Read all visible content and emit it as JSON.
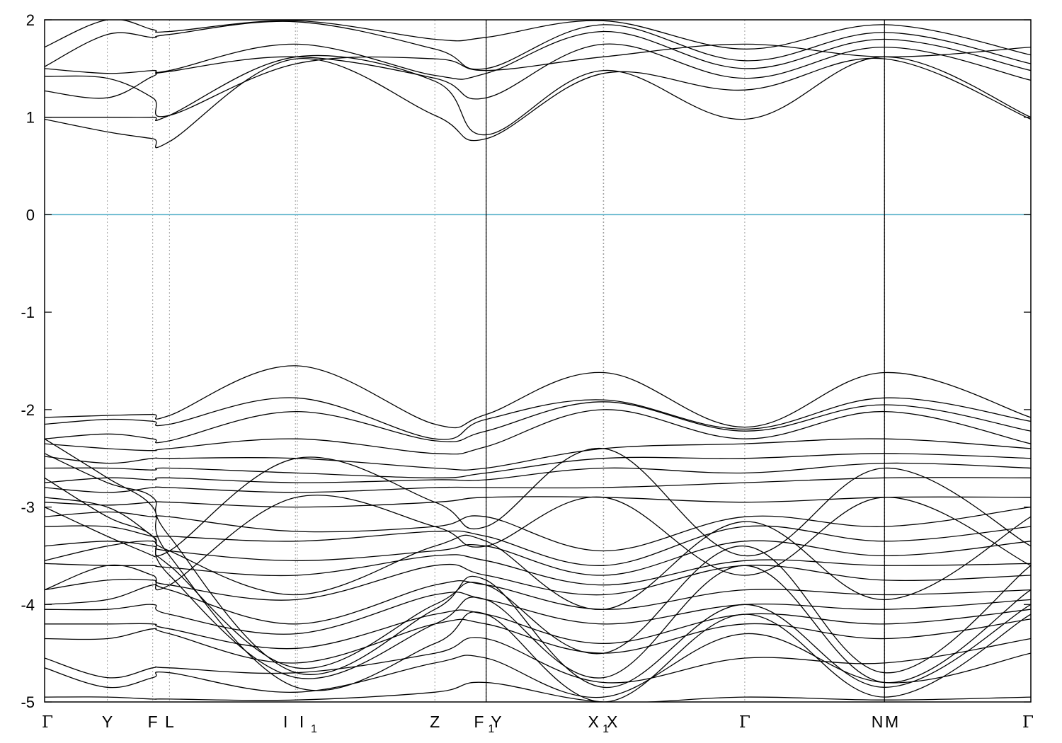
{
  "chart_data": {
    "type": "line",
    "title": "",
    "xlabel": "",
    "ylabel": "",
    "ylim": [
      -5,
      2
    ],
    "xlim": [
      0,
      1
    ],
    "grid": "vertical dotted lines at high-symmetry k-points",
    "legend": "none",
    "yticks": [
      "2",
      "1",
      "0",
      "-1",
      "-2",
      "-3",
      "-4",
      "-5"
    ],
    "kpoints": [
      {
        "label": "Γ",
        "sub": "",
        "x": 0.0
      },
      {
        "label": "Y",
        "sub": "",
        "x": 0.0636
      },
      {
        "label": "F",
        "sub": "",
        "x": 0.1096
      },
      {
        "label": "L",
        "sub": "",
        "x": 0.1266
      },
      {
        "label": "I",
        "sub": "",
        "x": 0.2543
      },
      {
        "label": "I",
        "sub": "1",
        "x": 0.2563
      },
      {
        "label": "Z",
        "sub": "",
        "x": 0.3957
      },
      {
        "label": "F",
        "sub": "1",
        "x": 0.4475
      },
      {
        "label": "Y",
        "sub": "",
        "x": 0.4479
      },
      {
        "label": "X",
        "sub": "1",
        "x": 0.5665
      },
      {
        "label": "X",
        "sub": "",
        "x": 0.5669
      },
      {
        "label": "Γ",
        "sub": "",
        "x": 0.7099
      },
      {
        "label": "N",
        "sub": "",
        "x": 0.8514
      },
      {
        "label": "M",
        "sub": "",
        "x": 0.8518
      },
      {
        "label": "Γ",
        "sub": "",
        "x": 1.0
      }
    ],
    "fermi_level": 0,
    "colors": {
      "bands": "#000000",
      "fermi": "#4bacc6",
      "grid": "#a0a0a0"
    },
    "segment_breaks": [
      0.4477,
      0.8516
    ],
    "series": [
      {
        "k": [
          0,
          0.0636,
          0.1096,
          0.1266,
          0.2553,
          0.3957,
          0.4477,
          0.5667,
          0.7099,
          0.8516,
          1.0
        ],
        "energy": [
          0.98,
          0.85,
          0.78,
          0.75,
          1.6,
          1.02,
          0.78,
          1.45,
          1.28,
          1.6,
          0.98
        ]
      },
      {
        "k": [
          0,
          0.0636,
          0.1096,
          0.1266,
          0.2553,
          0.3957,
          0.4477,
          0.5667,
          0.7099,
          0.8516,
          1.0
        ],
        "energy": [
          1.0,
          1.0,
          1.0,
          1.02,
          1.62,
          1.37,
          0.82,
          1.48,
          0.98,
          1.62,
          1.0
        ]
      },
      {
        "k": [
          0,
          0.0636,
          0.1096,
          0.1266,
          0.2553,
          0.3957,
          0.4477,
          0.5667,
          0.7099,
          0.8516,
          1.0
        ],
        "energy": [
          1.27,
          1.2,
          1.42,
          1.47,
          1.62,
          1.4,
          1.2,
          1.75,
          1.4,
          1.72,
          1.38
        ]
      },
      {
        "k": [
          0,
          0.0636,
          0.1096,
          0.1266,
          0.2553,
          0.3957,
          0.4477,
          0.5667,
          0.7099,
          0.8516,
          1.0
        ],
        "energy": [
          1.5,
          1.45,
          1.48,
          1.48,
          1.75,
          1.43,
          1.45,
          1.88,
          1.5,
          1.8,
          1.48
        ]
      },
      {
        "k": [
          0,
          0.0636,
          0.1096,
          0.1266,
          0.2553,
          0.3957,
          0.4477,
          0.5667,
          0.7099,
          0.8516,
          1.0
        ],
        "energy": [
          1.52,
          1.85,
          1.82,
          1.85,
          1.98,
          1.7,
          1.5,
          1.95,
          1.58,
          1.87,
          1.55
        ]
      },
      {
        "k": [
          0,
          0.0636,
          0.1096,
          0.1266,
          0.2553,
          0.3957,
          0.4477,
          0.5667,
          0.7099,
          0.8516,
          1.0
        ],
        "energy": [
          1.72,
          2.0,
          1.9,
          1.88,
          1.99,
          1.8,
          1.82,
          1.99,
          1.7,
          1.95,
          1.64
        ]
      },
      {
        "k": [
          0,
          0.0636,
          0.1096,
          0.1266,
          0.2553,
          0.3957,
          0.4477,
          0.5667,
          0.7099,
          0.8516,
          1.0
        ],
        "energy": [
          1.42,
          1.4,
          1.2,
          1.02,
          1.55,
          1.6,
          1.48,
          1.62,
          1.75,
          1.62,
          1.72
        ]
      },
      {
        "k": [
          0,
          0.0636,
          0.1096,
          0.1266,
          0.2553,
          0.3957,
          0.4477,
          0.5667,
          0.7099,
          0.8516,
          1.0
        ],
        "energy": [
          -2.08,
          -2.06,
          -2.05,
          -2.06,
          -1.55,
          -2.15,
          -2.05,
          -1.62,
          -2.18,
          -1.62,
          -2.08
        ]
      },
      {
        "k": [
          0,
          0.0636,
          0.1096,
          0.1266,
          0.2553,
          0.3957,
          0.4477,
          0.5667,
          0.7099,
          0.8516,
          1.0
        ],
        "energy": [
          -2.15,
          -2.1,
          -2.12,
          -2.15,
          -1.88,
          -2.3,
          -2.1,
          -1.9,
          -2.2,
          -1.88,
          -2.12
        ]
      },
      {
        "k": [
          0,
          0.0636,
          0.1096,
          0.1266,
          0.2553,
          0.3957,
          0.4477,
          0.5667,
          0.7099,
          0.8516,
          1.0
        ],
        "energy": [
          -2.3,
          -2.25,
          -2.3,
          -2.32,
          -2.02,
          -2.32,
          -2.22,
          -1.92,
          -2.22,
          -1.95,
          -2.22
        ]
      },
      {
        "k": [
          0,
          0.0636,
          0.1096,
          0.1266,
          0.2553,
          0.3957,
          0.4477,
          0.5667,
          0.7099,
          0.8516,
          1.0
        ],
        "energy": [
          -2.35,
          -2.4,
          -2.42,
          -2.4,
          -2.3,
          -2.45,
          -2.38,
          -2.0,
          -2.3,
          -2.02,
          -2.35
        ]
      },
      {
        "k": [
          0,
          0.0636,
          0.1096,
          0.1266,
          0.2553,
          0.3957,
          0.4477,
          0.5667,
          0.7099,
          0.8516,
          1.0
        ],
        "energy": [
          -2.48,
          -2.55,
          -2.5,
          -2.5,
          -2.5,
          -2.6,
          -2.6,
          -2.4,
          -2.35,
          -2.3,
          -2.4
        ]
      },
      {
        "k": [
          0,
          0.0636,
          0.1096,
          0.1266,
          0.2553,
          0.3957,
          0.4477,
          0.5667,
          0.7099,
          0.8516,
          1.0
        ],
        "energy": [
          -2.6,
          -2.6,
          -2.62,
          -2.6,
          -2.65,
          -2.7,
          -2.65,
          -2.5,
          -2.5,
          -2.45,
          -2.5
        ]
      },
      {
        "k": [
          0,
          0.0636,
          0.1096,
          0.1266,
          0.2553,
          0.3957,
          0.4477,
          0.5667,
          0.7099,
          0.8516,
          1.0
        ],
        "energy": [
          -2.75,
          -2.7,
          -2.72,
          -2.7,
          -2.75,
          -2.72,
          -2.72,
          -2.6,
          -2.65,
          -2.55,
          -2.6
        ]
      },
      {
        "k": [
          0,
          0.0636,
          0.1096,
          0.1266,
          0.2553,
          0.3957,
          0.4477,
          0.5667,
          0.7099,
          0.8516,
          1.0
        ],
        "energy": [
          -2.8,
          -2.85,
          -2.8,
          -2.8,
          -2.85,
          -2.8,
          -2.8,
          -2.8,
          -2.75,
          -2.7,
          -2.7
        ]
      },
      {
        "k": [
          0,
          0.0636,
          0.1096,
          0.1266,
          0.2553,
          0.3957,
          0.4477,
          0.5667,
          0.7099,
          0.8516,
          1.0
        ],
        "energy": [
          -2.95,
          -2.98,
          -2.95,
          -2.95,
          -3.0,
          -2.95,
          -2.9,
          -2.9,
          -2.95,
          -2.9,
          -2.9
        ]
      },
      {
        "k": [
          0,
          0.0636,
          0.1096,
          0.1266,
          0.2553,
          0.3957,
          0.4477,
          0.5667,
          0.7099,
          0.8516,
          1.0
        ],
        "energy": [
          -3.1,
          -3.05,
          -3.1,
          -3.1,
          -3.25,
          -3.2,
          -3.1,
          -3.45,
          -3.1,
          -3.2,
          -3.0
        ]
      },
      {
        "k": [
          0,
          0.0636,
          0.1096,
          0.1266,
          0.2553,
          0.3957,
          0.4477,
          0.5667,
          0.7099,
          0.8516,
          1.0
        ],
        "energy": [
          -3.2,
          -3.2,
          -3.3,
          -3.3,
          -3.35,
          -3.25,
          -3.3,
          -3.6,
          -3.2,
          -3.35,
          -3.2
        ]
      },
      {
        "k": [
          0,
          0.0636,
          0.1096,
          0.1266,
          0.2553,
          0.3957,
          0.4477,
          0.5667,
          0.7099,
          0.8516,
          1.0
        ],
        "energy": [
          -3.4,
          -3.35,
          -3.4,
          -3.45,
          -3.55,
          -3.45,
          -3.4,
          -3.7,
          -3.35,
          -3.5,
          -3.35
        ]
      },
      {
        "k": [
          0,
          0.0636,
          0.1096,
          0.1266,
          0.2553,
          0.3957,
          0.4477,
          0.5667,
          0.7099,
          0.8516,
          1.0
        ],
        "energy": [
          -3.58,
          -3.6,
          -3.6,
          -3.62,
          -3.7,
          -3.5,
          -3.55,
          -3.8,
          -3.55,
          -3.6,
          -3.58
        ]
      },
      {
        "k": [
          0,
          0.0636,
          0.1096,
          0.1266,
          0.2553,
          0.3957,
          0.4477,
          0.5667,
          0.7099,
          0.8516,
          1.0
        ],
        "energy": [
          -3.85,
          -3.75,
          -3.75,
          -3.8,
          -3.95,
          -3.6,
          -3.7,
          -3.9,
          -3.6,
          -3.75,
          -3.7
        ]
      },
      {
        "k": [
          0,
          0.0636,
          0.1096,
          0.1266,
          0.2553,
          0.3957,
          0.4477,
          0.5667,
          0.7099,
          0.8516,
          1.0
        ],
        "energy": [
          -4.0,
          -3.95,
          -3.8,
          -3.85,
          -4.2,
          -3.8,
          -3.8,
          -4.05,
          -3.85,
          -3.9,
          -3.85
        ]
      },
      {
        "k": [
          0,
          0.0636,
          0.1096,
          0.1266,
          0.2553,
          0.3957,
          0.4477,
          0.5667,
          0.7099,
          0.8516,
          1.0
        ],
        "energy": [
          -4.05,
          -4.05,
          -4.0,
          -4.1,
          -4.3,
          -3.9,
          -3.95,
          -4.2,
          -4.0,
          -4.05,
          -3.95
        ]
      },
      {
        "k": [
          0,
          0.0636,
          0.1096,
          0.1266,
          0.2553,
          0.3957,
          0.4477,
          0.5667,
          0.7099,
          0.8516,
          1.0
        ],
        "energy": [
          -4.2,
          -4.2,
          -4.2,
          -4.25,
          -4.45,
          -4.1,
          -4.1,
          -4.4,
          -4.1,
          -4.2,
          -4.05
        ]
      },
      {
        "k": [
          0,
          0.0636,
          0.1096,
          0.1266,
          0.2553,
          0.3957,
          0.4477,
          0.5667,
          0.7099,
          0.8516,
          1.0
        ],
        "energy": [
          -4.35,
          -4.35,
          -4.25,
          -4.3,
          -4.6,
          -4.2,
          -4.2,
          -4.5,
          -4.2,
          -4.35,
          -4.15
        ]
      },
      {
        "k": [
          0,
          0.0636,
          0.1096,
          0.1266,
          0.2553,
          0.3957,
          0.4477,
          0.5667,
          0.7099,
          0.8516,
          1.0
        ],
        "energy": [
          -4.55,
          -4.75,
          -4.65,
          -4.65,
          -4.7,
          -4.5,
          -4.35,
          -4.8,
          -4.55,
          -4.6,
          -4.35
        ]
      },
      {
        "k": [
          0,
          0.0636,
          0.1096,
          0.1266,
          0.2553,
          0.3957,
          0.4477,
          0.5667,
          0.7099,
          0.8516,
          1.0
        ],
        "energy": [
          -4.65,
          -4.85,
          -4.75,
          -4.7,
          -4.9,
          -4.6,
          -4.55,
          -4.95,
          -4.3,
          -4.8,
          -4.5
        ]
      },
      {
        "k": [
          0,
          0.0636,
          0.1096,
          0.1266,
          0.2553,
          0.3957,
          0.4477,
          0.5667,
          0.7099,
          0.8516,
          1.0
        ],
        "energy": [
          -4.95,
          -4.95,
          -4.97,
          -4.97,
          -4.98,
          -4.9,
          -4.8,
          -5.0,
          -4.95,
          -4.98,
          -4.95
        ]
      },
      {
        "k": [
          0,
          0.0636,
          0.1096,
          0.1266,
          0.2553,
          0.3957,
          0.4477,
          0.5667,
          0.7099,
          0.8516,
          1.0
        ],
        "energy": [
          -2.9,
          -3.0,
          -3.3,
          -3.45,
          -3.9,
          -3.4,
          -3.35,
          -4.05,
          -3.15,
          -3.95,
          -3.1
        ]
      },
      {
        "k": [
          0,
          0.0636,
          0.1096,
          0.1266,
          0.2553,
          0.3957,
          0.4477,
          0.5667,
          0.7099,
          0.8516,
          1.0
        ],
        "energy": [
          -3.0,
          -3.3,
          -3.5,
          -3.6,
          -4.65,
          -4.0,
          -3.8,
          -4.5,
          -3.4,
          -4.7,
          -3.6
        ]
      },
      {
        "k": [
          0,
          0.0636,
          0.1096,
          0.1266,
          0.2553,
          0.3957,
          0.4477,
          0.5667,
          0.7099,
          0.8516,
          1.0
        ],
        "energy": [
          -2.7,
          -3.1,
          -3.3,
          -3.7,
          -4.75,
          -4.2,
          -3.95,
          -4.75,
          -3.6,
          -4.8,
          -3.85
        ]
      },
      {
        "k": [
          0,
          0.0636,
          0.1096,
          0.1266,
          0.2553,
          0.3957,
          0.4477,
          0.5667,
          0.7099,
          0.8516,
          1.0
        ],
        "energy": [
          -2.45,
          -2.75,
          -2.9,
          -3.3,
          -4.7,
          -4.05,
          -3.75,
          -4.85,
          -4.0,
          -4.85,
          -4.0
        ]
      },
      {
        "k": [
          0,
          0.0636,
          0.1096,
          0.1266,
          0.2553,
          0.3957,
          0.4477,
          0.5667,
          0.7099,
          0.8516,
          1.0
        ],
        "energy": [
          -2.3,
          -2.7,
          -3.0,
          -3.5,
          -4.85,
          -4.4,
          -4.1,
          -5.0,
          -4.1,
          -4.95,
          -4.1
        ]
      },
      {
        "k": [
          0,
          0.0636,
          0.1096,
          0.1266,
          0.2553,
          0.3957,
          0.4477,
          0.5667,
          0.7099,
          0.8516,
          1.0
        ],
        "energy": [
          -3.55,
          -3.4,
          -3.35,
          -3.45,
          -2.5,
          -2.95,
          -3.2,
          -2.4,
          -3.5,
          -2.6,
          -3.4
        ]
      },
      {
        "k": [
          0,
          0.0636,
          0.1096,
          0.1266,
          0.2553,
          0.3957,
          0.4477,
          0.5667,
          0.7099,
          0.8516,
          1.0
        ],
        "energy": [
          -3.85,
          -3.6,
          -3.7,
          -3.8,
          -2.9,
          -3.2,
          -3.4,
          -2.9,
          -3.7,
          -2.9,
          -3.6
        ]
      }
    ]
  }
}
